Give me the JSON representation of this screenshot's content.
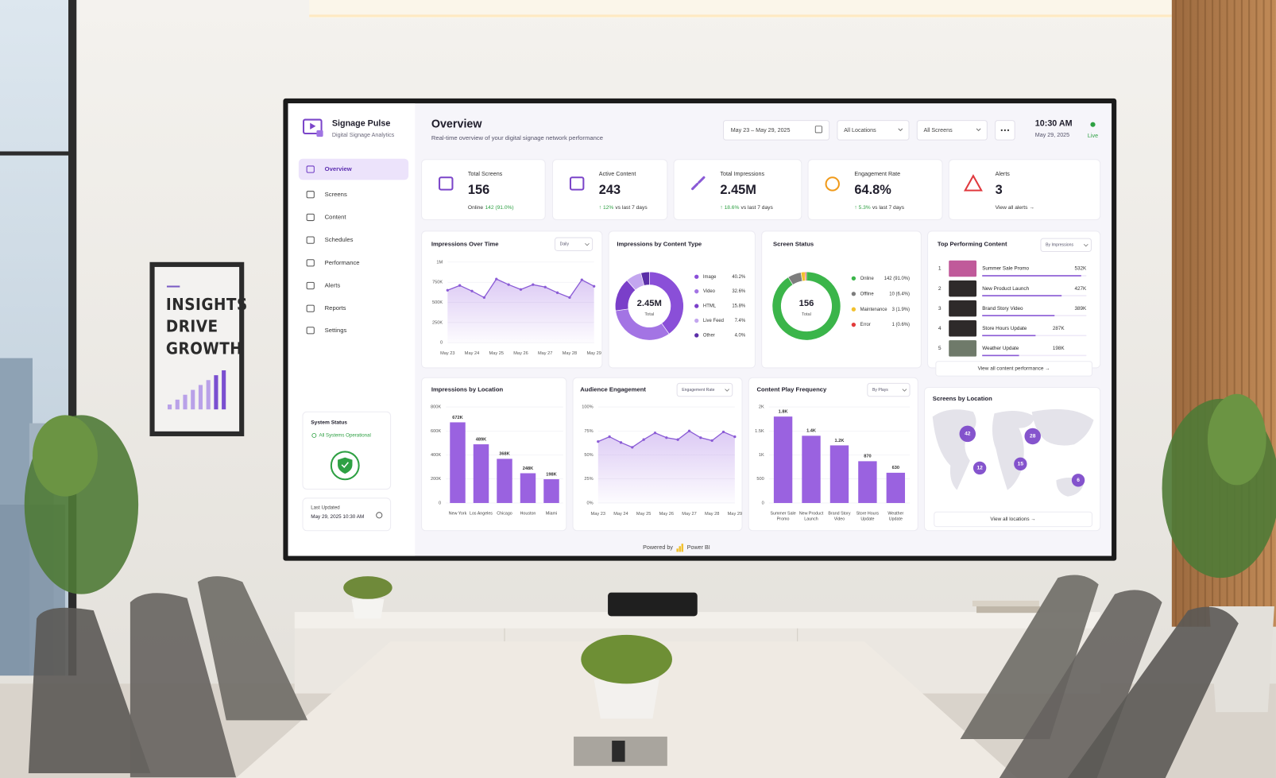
{
  "room": {
    "poster": {
      "lines": [
        "INSIGHTS",
        "DRIVE",
        "GROWTH"
      ]
    }
  },
  "dashboard": {
    "brand": {
      "name": "Signage Pulse",
      "tagline": "Digital Signage Analytics"
    },
    "nav": [
      "Overview",
      "Screens",
      "Content",
      "Schedules",
      "Performance",
      "Alerts",
      "Reports",
      "Settings"
    ],
    "system_status": {
      "title": "System Status",
      "status": "All Systems Operational"
    },
    "last_updated": {
      "label": "Last Updated",
      "value": "May 29, 2025 10:30 AM"
    },
    "header": {
      "title": "Overview",
      "subtitle": "Real-time overview of your digital signage network performance",
      "date_range": "May 23 – May 29, 2025",
      "locations": "All Locations",
      "screens": "All Screens",
      "time": "10:30 AM",
      "date": "May 29, 2025",
      "live": "Live"
    },
    "kpis": [
      {
        "label": "Total Screens",
        "value": 156,
        "note": "Online",
        "highlight": "142 (91.0%)"
      },
      {
        "label": "Active Content",
        "value": 243,
        "highlight": "↑ 12%",
        "note": "vs last 7 days"
      },
      {
        "label": "Total Impressions",
        "value": "2.45M",
        "highlight": "↑ 18.6%",
        "note": "vs last 7 days"
      },
      {
        "label": "Engagement Rate",
        "value": "64.8%",
        "highlight": "↑ 5.3%",
        "note": "vs last 7 days"
      },
      {
        "label": "Alerts",
        "value": 3,
        "link": "View all alerts →"
      }
    ],
    "footer": {
      "powered_by": "Powered by",
      "product": "Power BI"
    }
  },
  "chart_data": [
    {
      "type": "line",
      "title": "Impressions Over Time",
      "control": "Daily",
      "categories": [
        "May 23",
        null,
        "May 24",
        null,
        "May 25",
        null,
        "May 26",
        null,
        "May 27",
        null,
        "May 28",
        null,
        "May 29"
      ],
      "values": [
        650000,
        710000,
        640000,
        560000,
        790000,
        720000,
        660000,
        720000,
        690000,
        620000,
        560000,
        780000,
        700000
      ],
      "color": "#8b5cd6",
      "area": true,
      "ylim": [
        0,
        1000000
      ],
      "yticks": [
        0,
        {
          "value": 250000,
          "label": "250K"
        },
        {
          "value": 500000,
          "label": "500K"
        },
        {
          "value": 750000,
          "label": "750K"
        },
        {
          "value": 1000000,
          "label": "1M"
        }
      ]
    },
    {
      "type": "pie",
      "donut": true,
      "title": "Impressions by Content Type",
      "center_value": "2.45M",
      "center_label": "Total",
      "categories": [
        "Image",
        "Video",
        "HTML",
        "Live Feed",
        "Other"
      ],
      "values": [
        40.2,
        32.6,
        15.8,
        7.4,
        4.0
      ],
      "value_labels": [
        "40.2%",
        "32.6%",
        "15.8%",
        "7.4%",
        "4.0%"
      ],
      "colors": [
        "#8a4fd8",
        "#a374e4",
        "#7a3fc9",
        "#c3a6ef",
        "#5b2ea8"
      ]
    },
    {
      "type": "pie",
      "donut": true,
      "title": "Screen Status",
      "center_value": 156,
      "center_label": "Total",
      "categories": [
        "Online",
        "Offline",
        "Maintenance",
        "Error"
      ],
      "values": [
        142,
        10,
        3,
        1
      ],
      "value_labels": [
        "142 (91.0%)",
        "10 (6.4%)",
        "3 (1.9%)",
        "1 (0.6%)"
      ],
      "colors": [
        "#3bb54a",
        "#7d7d7d",
        "#f2c12e",
        "#e23b3b"
      ]
    },
    {
      "type": "bar",
      "orientation": "horizontal",
      "title": "Top Performing Content",
      "control": "By Impressions",
      "ranks": [
        1,
        2,
        3,
        4,
        5
      ],
      "categories": [
        "Summer Sale Promo",
        "New Product Launch",
        "Brand Story Video",
        "Store Hours Update",
        "Weather Update"
      ],
      "values": [
        532000,
        427000,
        389000,
        287000,
        198000
      ],
      "value_labels": [
        "532K",
        "427K",
        "389K",
        "287K",
        "198K"
      ],
      "color": "#8b5cd6",
      "xlim": [
        0,
        560000
      ],
      "link": "View all content performance →"
    },
    {
      "type": "bar",
      "title": "Impressions by Location",
      "categories": [
        "New York",
        "Los Angeles",
        "Chicago",
        "Houston",
        "Miami"
      ],
      "values": [
        672000,
        489000,
        368000,
        248000,
        198000
      ],
      "value_labels": [
        "672K",
        "489K",
        "368K",
        "248K",
        "198K"
      ],
      "color": "#9a62e0",
      "ylim": [
        0,
        800000
      ],
      "yticks": [
        0,
        {
          "value": 200000,
          "label": "200K"
        },
        {
          "value": 400000,
          "label": "400K"
        },
        {
          "value": 600000,
          "label": "600K"
        },
        {
          "value": 800000,
          "label": "800K"
        }
      ]
    },
    {
      "type": "line",
      "title": "Audience Engagement",
      "control": "Engagement Rate",
      "categories": [
        "May 23",
        null,
        "May 24",
        null,
        "May 25",
        null,
        "May 26",
        null,
        "May 27",
        null,
        "May 28",
        null,
        "May 29"
      ],
      "values": [
        64,
        69,
        63,
        58,
        66,
        73,
        68,
        66,
        75,
        68,
        65,
        74,
        69
      ],
      "color": "#8b5cd6",
      "area": true,
      "ylim": [
        0,
        100
      ],
      "yticks": [
        {
          "value": 0,
          "label": "0%"
        },
        {
          "value": 25,
          "label": "25%"
        },
        {
          "value": 50,
          "label": "50%"
        },
        {
          "value": 75,
          "label": "75%"
        },
        {
          "value": 100,
          "label": "100%"
        }
      ]
    },
    {
      "type": "bar",
      "title": "Content Play Frequency",
      "control": "By Plays",
      "categories": [
        "Summer Sale Promo",
        "New Product Launch",
        "Brand Story Video",
        "Store Hours Update",
        "Weather Update"
      ],
      "values": [
        1800,
        1400,
        1200,
        870,
        630
      ],
      "value_labels": [
        "1.8K",
        "1.4K",
        "1.2K",
        "870",
        "630"
      ],
      "color": "#9a62e0",
      "ylim": [
        0,
        2000
      ],
      "yticks": [
        0,
        500,
        {
          "value": 1000,
          "label": "1K"
        },
        {
          "value": 1500,
          "label": "1.5K"
        },
        {
          "value": 2000,
          "label": "2K"
        }
      ]
    },
    {
      "type": "map",
      "title": "Screens by Location",
      "values": [
        42,
        28,
        12,
        15,
        6
      ],
      "color": "#7b45c9",
      "link": "View all locations →"
    }
  ]
}
